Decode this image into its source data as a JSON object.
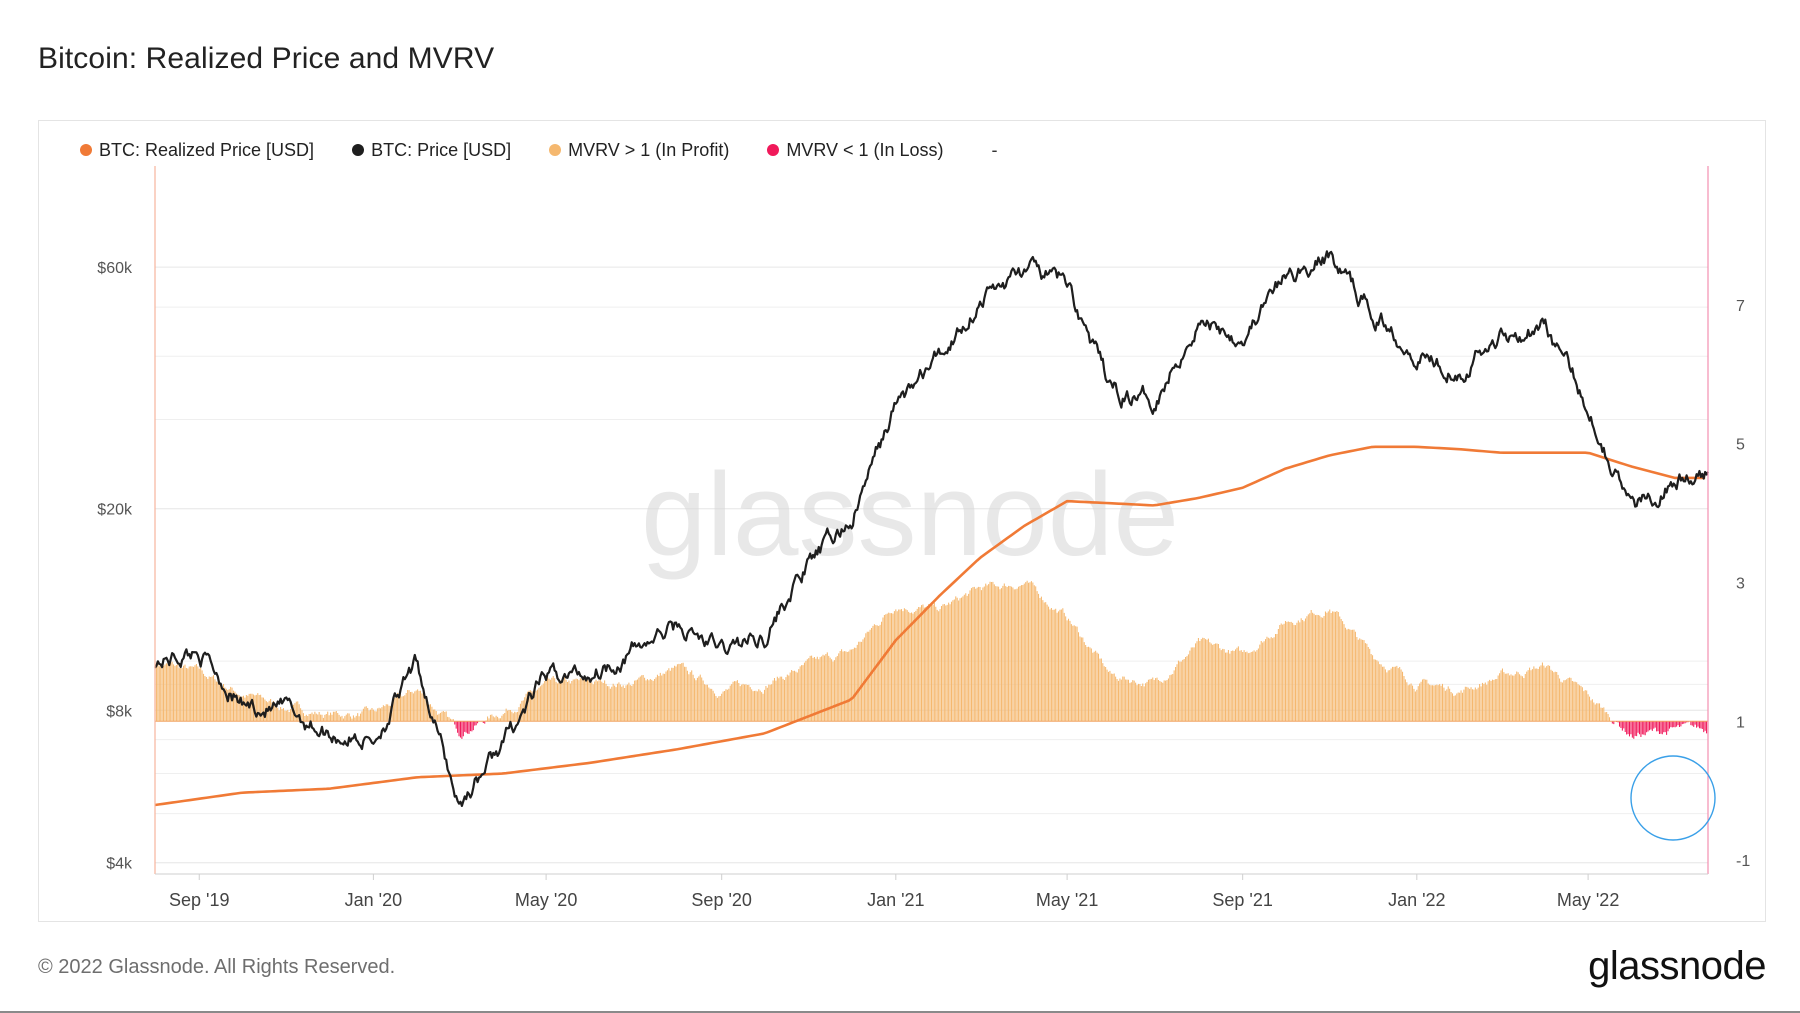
{
  "page": {
    "title": "Bitcoin: Realized Price and MVRV",
    "copyright": "© 2022 Glassnode. All Rights Reserved.",
    "logo": "glassnode",
    "watermark": "glassnode"
  },
  "legend": {
    "items": [
      {
        "label": "BTC: Realized Price [USD]",
        "color": "#f07a36"
      },
      {
        "label": "BTC: Price [USD]",
        "color": "#1e1e1e"
      },
      {
        "label": "MVRV > 1 (In Profit)",
        "color": "#f5b86f"
      },
      {
        "label": "MVRV < 1 (In Loss)",
        "color": "#f0195a"
      }
    ],
    "extra": "-"
  },
  "chart_data": {
    "type": "line",
    "title": "Bitcoin: Realized Price and MVRV",
    "x_ticks": [
      "Sep '19",
      "Jan '20",
      "May '20",
      "Sep '20",
      "Jan '21",
      "May '21",
      "Sep '21",
      "Jan '22",
      "May '22"
    ],
    "y_left": {
      "scale": "log",
      "ticks": [
        "$4k",
        "$8k",
        "$20k",
        "$60k"
      ],
      "tick_values": [
        4000,
        8000,
        20000,
        60000
      ],
      "range": [
        3800,
        95000
      ]
    },
    "y_right": {
      "ticks": [
        "-1",
        "1",
        "3",
        "5",
        "7"
      ],
      "tick_values": [
        -1,
        1,
        3,
        5,
        7
      ],
      "range": [
        -1.2,
        9.0
      ]
    },
    "series": [
      {
        "name": "BTC: Price [USD]",
        "axis": "left",
        "color": "#1e1e1e",
        "x": [
          "2019-08",
          "2019-09",
          "2019-10",
          "2019-11",
          "2019-12",
          "2020-01",
          "2020-02",
          "2020-03",
          "2020-04",
          "2020-05",
          "2020-06",
          "2020-07",
          "2020-08",
          "2020-09",
          "2020-10",
          "2020-11",
          "2020-12",
          "2021-01",
          "2021-02",
          "2021-03",
          "2021-04",
          "2021-05",
          "2021-06",
          "2021-07",
          "2021-08",
          "2021-09",
          "2021-10",
          "2021-11",
          "2021-12",
          "2022-01",
          "2022-02",
          "2022-03",
          "2022-04",
          "2022-05",
          "2022-06",
          "2022-07"
        ],
        "values": [
          10000,
          10500,
          8200,
          8000,
          7200,
          7000,
          9800,
          5200,
          6900,
          9300,
          9500,
          10500,
          11700,
          10500,
          11300,
          15500,
          19000,
          32000,
          40000,
          52000,
          59000,
          56000,
          34000,
          33000,
          47000,
          44000,
          57000,
          63000,
          49000,
          41000,
          38000,
          44000,
          46000,
          32000,
          20000,
          23000
        ]
      },
      {
        "name": "BTC: Realized Price [USD]",
        "axis": "left",
        "color": "#f07a36",
        "x": [
          "2019-08",
          "2019-10",
          "2019-12",
          "2020-02",
          "2020-04",
          "2020-06",
          "2020-08",
          "2020-10",
          "2020-12",
          "2021-01",
          "2021-02",
          "2021-03",
          "2021-04",
          "2021-05",
          "2021-06",
          "2021-07",
          "2021-08",
          "2021-09",
          "2021-10",
          "2021-11",
          "2021-12",
          "2022-01",
          "2022-02",
          "2022-03",
          "2022-04",
          "2022-05",
          "2022-06",
          "2022-07"
        ],
        "values": [
          5200,
          5500,
          5600,
          5900,
          6000,
          6300,
          6700,
          7200,
          8400,
          11000,
          13500,
          16000,
          18500,
          20700,
          20500,
          20300,
          21000,
          22000,
          24000,
          25500,
          26500,
          26500,
          26200,
          25800,
          25800,
          25800,
          24200,
          23000
        ]
      },
      {
        "name": "MVRV",
        "axis": "right",
        "x": [
          "2019-08",
          "2019-09",
          "2019-10",
          "2019-11",
          "2019-12",
          "2020-01",
          "2020-02",
          "2020-03",
          "2020-04",
          "2020-05",
          "2020-06",
          "2020-07",
          "2020-08",
          "2020-09",
          "2020-10",
          "2020-11",
          "2020-12",
          "2021-01",
          "2021-02",
          "2021-03",
          "2021-04",
          "2021-05",
          "2021-06",
          "2021-07",
          "2021-08",
          "2021-09",
          "2021-10",
          "2021-11",
          "2021-12",
          "2022-01",
          "2022-02",
          "2022-03",
          "2022-04",
          "2022-05",
          "2022-06",
          "2022-07"
        ],
        "values": [
          1.85,
          1.7,
          1.4,
          1.2,
          1.1,
          1.1,
          1.45,
          0.85,
          1.15,
          1.5,
          1.55,
          1.55,
          1.75,
          1.45,
          1.55,
          1.8,
          2.0,
          2.7,
          2.6,
          2.9,
          3.0,
          2.5,
          1.65,
          1.55,
          2.1,
          1.95,
          2.45,
          2.65,
          1.95,
          1.55,
          1.45,
          1.65,
          1.8,
          1.35,
          0.8,
          0.87
        ]
      }
    ],
    "mvrv_split": {
      "in_profit_label": "MVRV > 1 (In Profit)",
      "in_loss_label": "MVRV < 1 (In Loss)",
      "threshold": 1
    }
  }
}
